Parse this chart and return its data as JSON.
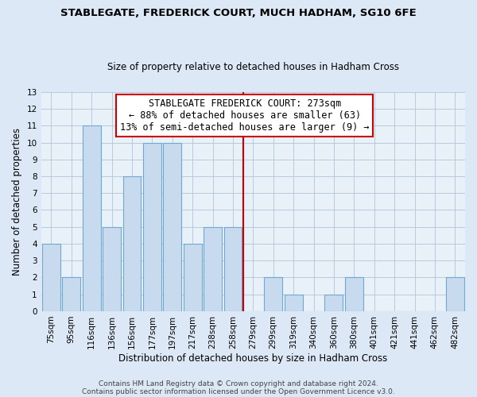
{
  "title": "STABLEGATE, FREDERICK COURT, MUCH HADHAM, SG10 6FE",
  "subtitle": "Size of property relative to detached houses in Hadham Cross",
  "xlabel": "Distribution of detached houses by size in Hadham Cross",
  "ylabel": "Number of detached properties",
  "bar_labels": [
    "75sqm",
    "95sqm",
    "116sqm",
    "136sqm",
    "156sqm",
    "177sqm",
    "197sqm",
    "217sqm",
    "238sqm",
    "258sqm",
    "279sqm",
    "299sqm",
    "319sqm",
    "340sqm",
    "360sqm",
    "380sqm",
    "401sqm",
    "421sqm",
    "441sqm",
    "462sqm",
    "482sqm"
  ],
  "bar_heights": [
    4,
    2,
    11,
    5,
    8,
    10,
    10,
    4,
    5,
    5,
    0,
    2,
    1,
    0,
    1,
    2,
    0,
    0,
    0,
    0,
    2
  ],
  "bar_fill_color": "#c8daee",
  "bar_edge_color": "#6fa8d0",
  "vline_color": "#cc0000",
  "ylim": [
    0,
    13
  ],
  "yticks": [
    0,
    1,
    2,
    3,
    4,
    5,
    6,
    7,
    8,
    9,
    10,
    11,
    12,
    13
  ],
  "annotation_title": "STABLEGATE FREDERICK COURT: 273sqm",
  "annotation_line1": "← 88% of detached houses are smaller (63)",
  "annotation_line2": "13% of semi-detached houses are larger (9) →",
  "footer1": "Contains HM Land Registry data © Crown copyright and database right 2024.",
  "footer2": "Contains public sector information licensed under the Open Government Licence v3.0.",
  "background_color": "#dce8f5",
  "plot_bg_color": "#e8f0f8",
  "grid_color": "#b0c4d8",
  "title_fontsize": 9.5,
  "subtitle_fontsize": 8.5,
  "axis_label_fontsize": 8.5,
  "tick_fontsize": 7.5,
  "annotation_fontsize": 8.5,
  "footer_fontsize": 6.5
}
